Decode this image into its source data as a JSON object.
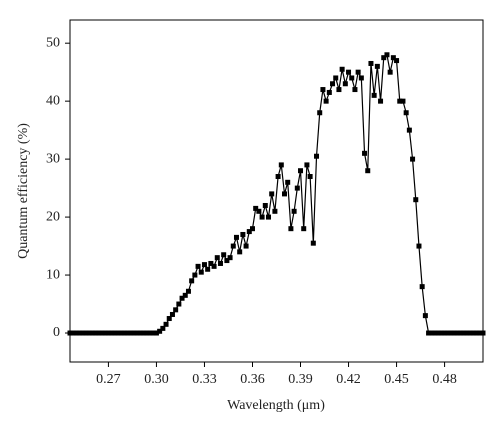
{
  "chart_data": {
    "type": "line",
    "xlabel": "Wavelength (μm)",
    "ylabel": "Quantum efficiency (%)",
    "color": "#000000",
    "x": [
      0.246,
      0.248,
      0.25,
      0.252,
      0.254,
      0.256,
      0.258,
      0.26,
      0.262,
      0.264,
      0.266,
      0.268,
      0.27,
      0.272,
      0.274,
      0.276,
      0.278,
      0.28,
      0.282,
      0.284,
      0.286,
      0.288,
      0.29,
      0.292,
      0.294,
      0.296,
      0.298,
      0.3,
      0.302,
      0.304,
      0.306,
      0.308,
      0.31,
      0.312,
      0.314,
      0.316,
      0.318,
      0.32,
      0.322,
      0.324,
      0.326,
      0.328,
      0.33,
      0.332,
      0.334,
      0.336,
      0.338,
      0.34,
      0.342,
      0.344,
      0.346,
      0.348,
      0.35,
      0.352,
      0.354,
      0.356,
      0.358,
      0.36,
      0.362,
      0.364,
      0.366,
      0.368,
      0.37,
      0.372,
      0.374,
      0.376,
      0.378,
      0.38,
      0.382,
      0.384,
      0.386,
      0.388,
      0.39,
      0.392,
      0.394,
      0.396,
      0.398,
      0.4,
      0.402,
      0.404,
      0.406,
      0.408,
      0.41,
      0.412,
      0.414,
      0.416,
      0.418,
      0.42,
      0.422,
      0.424,
      0.426,
      0.428,
      0.43,
      0.432,
      0.434,
      0.436,
      0.438,
      0.44,
      0.442,
      0.444,
      0.446,
      0.448,
      0.45,
      0.452,
      0.454,
      0.456,
      0.458,
      0.46,
      0.462,
      0.464,
      0.466,
      0.468,
      0.47,
      0.472,
      0.474,
      0.476,
      0.478,
      0.48,
      0.482,
      0.484,
      0.486,
      0.488,
      0.49,
      0.492,
      0.494,
      0.496,
      0.498,
      0.5,
      0.502,
      0.504
    ],
    "values": [
      0,
      0,
      0,
      0,
      0,
      0,
      0,
      0,
      0,
      0,
      0,
      0,
      0,
      0,
      0,
      0,
      0,
      0,
      0,
      0,
      0,
      0,
      0,
      0,
      0,
      0,
      0,
      0,
      0.3,
      0.8,
      1.5,
      2.5,
      3.2,
      4,
      5,
      6,
      6.5,
      7.2,
      9,
      10,
      11.5,
      10.5,
      11.8,
      11,
      12,
      11.5,
      13,
      12,
      13.5,
      12.5,
      13,
      15,
      16.5,
      14,
      17,
      15,
      17.5,
      18,
      21.5,
      21,
      20,
      22,
      20,
      24,
      21,
      27,
      29,
      24,
      26,
      18,
      21,
      25,
      28,
      18,
      29,
      27,
      15.5,
      30.5,
      38,
      42,
      40,
      41.5,
      43,
      44,
      42,
      45.5,
      43,
      45,
      44,
      42,
      45,
      44,
      31,
      28,
      46.5,
      41,
      46,
      40,
      47.5,
      48,
      45,
      47.5,
      47,
      40,
      40,
      38,
      35,
      30,
      23,
      15,
      8,
      3,
      0,
      0,
      0,
      0,
      0,
      0,
      0,
      0,
      0,
      0,
      0,
      0,
      0,
      0,
      0,
      0,
      0,
      0
    ],
    "xlim": [
      0.246,
      0.504
    ],
    "ylim": [
      -5,
      54
    ],
    "xticks": [
      0.27,
      {
        "value": 0.3,
        "label": "0.30"
      },
      0.33,
      0.36,
      0.39,
      0.42,
      0.45,
      0.48
    ],
    "yticks": [
      0,
      10,
      20,
      30,
      40,
      50
    ]
  }
}
